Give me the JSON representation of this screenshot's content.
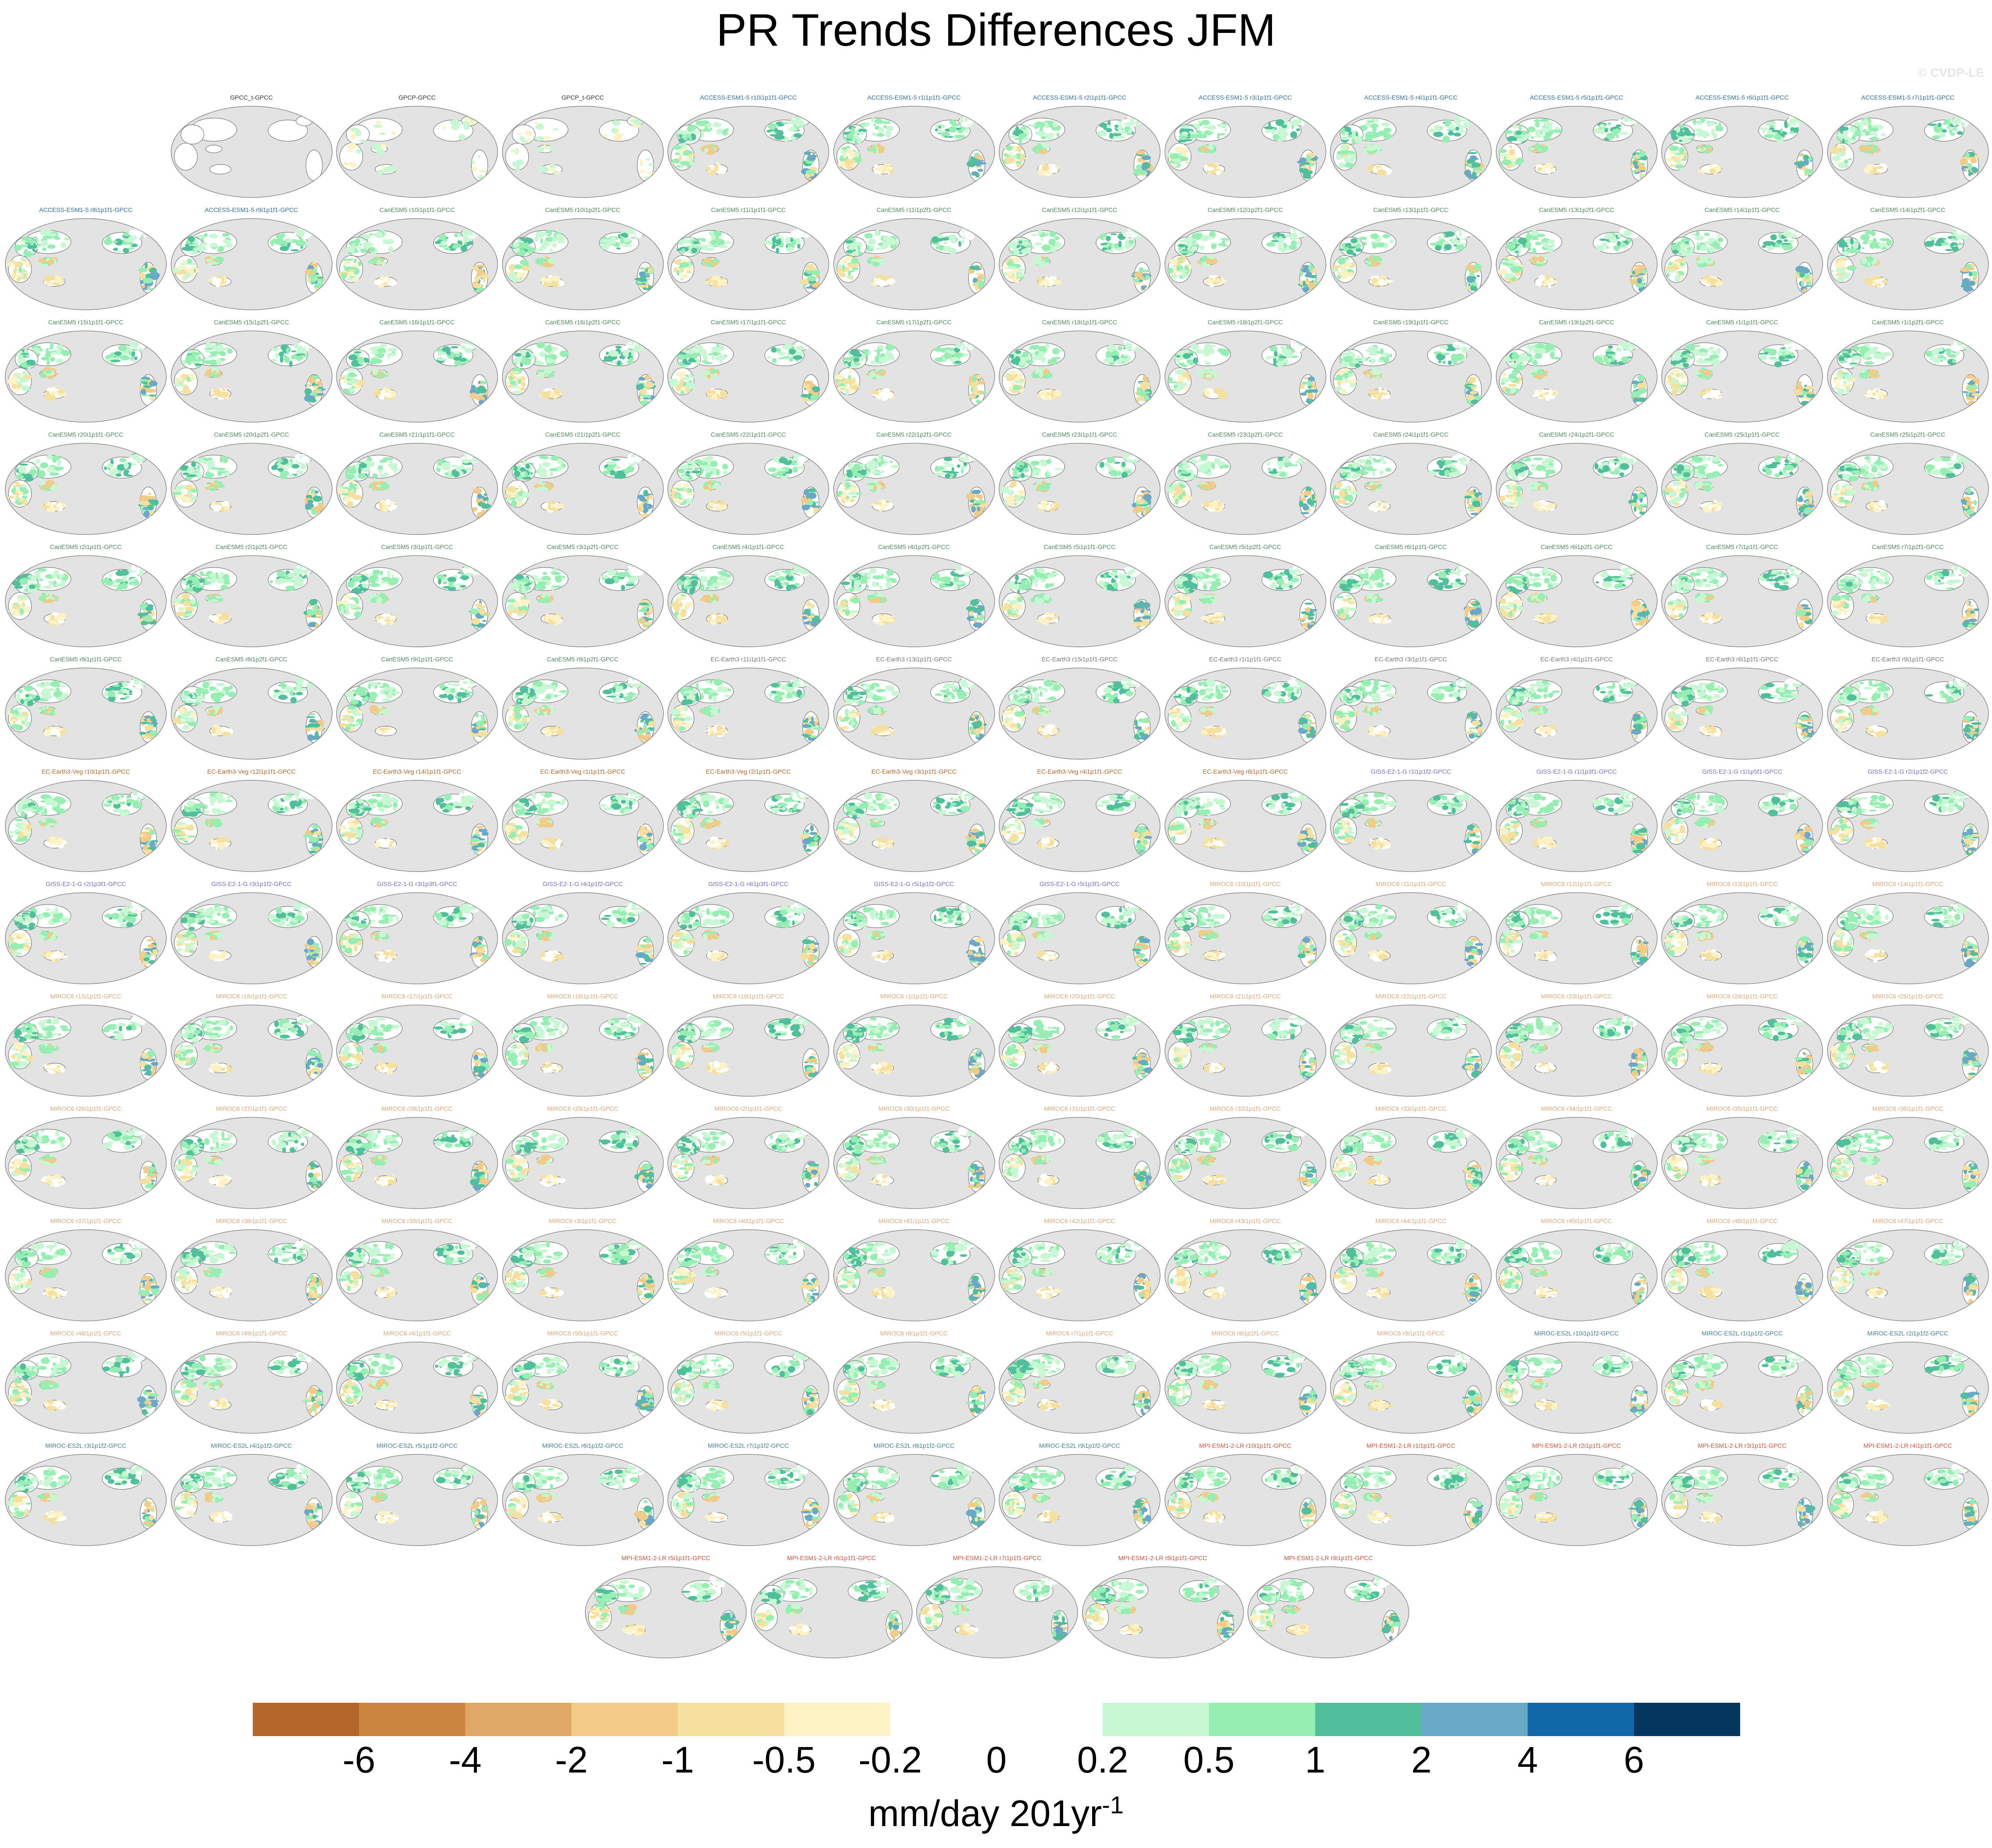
{
  "title": "PR Trends Differences JFM",
  "watermark": "© CVDP-LE",
  "colorbar": {
    "colors": [
      "#b5662a",
      "#cc853f",
      "#e0a866",
      "#f3cb88",
      "#f5e0a0",
      "#fdf2c3",
      "#ffffff",
      "#ffffff",
      "#c8f8d3",
      "#96eeb3",
      "#52bf9c",
      "#6aa8c8",
      "#1068a8",
      "#03375e"
    ],
    "ticks": [
      "-6",
      "-4",
      "-2",
      "-1",
      "-0.5",
      "-0.2",
      "0",
      "0.2",
      "0.5",
      "1",
      "2",
      "4",
      "6"
    ],
    "units_main": "mm/day 201yr",
    "units_sup": "-1"
  },
  "chart_data": {
    "type": "heatmap",
    "title": "PR Trends Differences JFM",
    "variable": "Precipitation trend difference (model minus GPCC), JFM",
    "units": "mm/day 201yr-1",
    "colorbar_levels": [
      -6,
      -4,
      -2,
      -1,
      -0.5,
      -0.2,
      0,
      0.2,
      0.5,
      1,
      2,
      4,
      6
    ],
    "group_colors": {
      "obs": "#333333",
      "ACCESS": "#2e6fa0",
      "CanESM5": "#4f8a5e",
      "EC-Earth3": "#777777",
      "EC-Earth3-Veg": "#b5682a",
      "GISS": "#7a6fc9",
      "MIROC6": "#e0a878",
      "MIROC-ES2L": "#3e7fa0",
      "MPI": "#d4533a"
    },
    "panels": [
      {
        "label": "GPCC_t-GPCC",
        "group": "obs"
      },
      {
        "label": "GPCP-GPCC",
        "group": "obs"
      },
      {
        "label": "GPCP_t-GPCC",
        "group": "obs"
      },
      {
        "label": "ACCESS-ESM1-5 r10i1p1f1-GPCC",
        "group": "ACCESS"
      },
      {
        "label": "ACCESS-ESM1-5 r1i1p1f1-GPCC",
        "group": "ACCESS"
      },
      {
        "label": "ACCESS-ESM1-5 r2i1p1f1-GPCC",
        "group": "ACCESS"
      },
      {
        "label": "ACCESS-ESM1-5 r3i1p1f1-GPCC",
        "group": "ACCESS"
      },
      {
        "label": "ACCESS-ESM1-5 r4i1p1f1-GPCC",
        "group": "ACCESS"
      },
      {
        "label": "ACCESS-ESM1-5 r5i1p1f1-GPCC",
        "group": "ACCESS"
      },
      {
        "label": "ACCESS-ESM1-5 r6i1p1f1-GPCC",
        "group": "ACCESS"
      },
      {
        "label": "ACCESS-ESM1-5 r7i1p1f1-GPCC",
        "group": "ACCESS"
      },
      {
        "label": "ACCESS-ESM1-5 r8i1p1f1-GPCC",
        "group": "ACCESS"
      },
      {
        "label": "ACCESS-ESM1-5 r9i1p1f1-GPCC",
        "group": "ACCESS"
      },
      {
        "label": "CanESM5 r10i1p1f1-GPCC",
        "group": "CanESM5"
      },
      {
        "label": "CanESM5 r10i1p2f1-GPCC",
        "group": "CanESM5"
      },
      {
        "label": "CanESM5 r11i1p1f1-GPCC",
        "group": "CanESM5"
      },
      {
        "label": "CanESM5 r11i1p2f1-GPCC",
        "group": "CanESM5"
      },
      {
        "label": "CanESM5 r12i1p1f1-GPCC",
        "group": "CanESM5"
      },
      {
        "label": "CanESM5 r12i1p2f1-GPCC",
        "group": "CanESM5"
      },
      {
        "label": "CanESM5 r13i1p1f1-GPCC",
        "group": "CanESM5"
      },
      {
        "label": "CanESM5 r13i1p2f1-GPCC",
        "group": "CanESM5"
      },
      {
        "label": "CanESM5 r14i1p1f1-GPCC",
        "group": "CanESM5"
      },
      {
        "label": "CanESM5 r14i1p2f1-GPCC",
        "group": "CanESM5"
      },
      {
        "label": "CanESM5 r15i1p1f1-GPCC",
        "group": "CanESM5"
      },
      {
        "label": "CanESM5 r15i1p2f1-GPCC",
        "group": "CanESM5"
      },
      {
        "label": "CanESM5 r16i1p1f1-GPCC",
        "group": "CanESM5"
      },
      {
        "label": "CanESM5 r16i1p2f1-GPCC",
        "group": "CanESM5"
      },
      {
        "label": "CanESM5 r17i1p1f1-GPCC",
        "group": "CanESM5"
      },
      {
        "label": "CanESM5 r17i1p2f1-GPCC",
        "group": "CanESM5"
      },
      {
        "label": "CanESM5 r18i1p1f1-GPCC",
        "group": "CanESM5"
      },
      {
        "label": "CanESM5 r18i1p2f1-GPCC",
        "group": "CanESM5"
      },
      {
        "label": "CanESM5 r19i1p1f1-GPCC",
        "group": "CanESM5"
      },
      {
        "label": "CanESM5 r19i1p2f1-GPCC",
        "group": "CanESM5"
      },
      {
        "label": "CanESM5 r1i1p1f1-GPCC",
        "group": "CanESM5"
      },
      {
        "label": "CanESM5 r1i1p2f1-GPCC",
        "group": "CanESM5"
      },
      {
        "label": "CanESM5 r20i1p1f1-GPCC",
        "group": "CanESM5"
      },
      {
        "label": "CanESM5 r20i1p2f1-GPCC",
        "group": "CanESM5"
      },
      {
        "label": "CanESM5 r21i1p1f1-GPCC",
        "group": "CanESM5"
      },
      {
        "label": "CanESM5 r21i1p2f1-GPCC",
        "group": "CanESM5"
      },
      {
        "label": "CanESM5 r22i1p1f1-GPCC",
        "group": "CanESM5"
      },
      {
        "label": "CanESM5 r22i1p2f1-GPCC",
        "group": "CanESM5"
      },
      {
        "label": "CanESM5 r23i1p1f1-GPCC",
        "group": "CanESM5"
      },
      {
        "label": "CanESM5 r23i1p2f1-GPCC",
        "group": "CanESM5"
      },
      {
        "label": "CanESM5 r24i1p1f1-GPCC",
        "group": "CanESM5"
      },
      {
        "label": "CanESM5 r24i1p2f1-GPCC",
        "group": "CanESM5"
      },
      {
        "label": "CanESM5 r25i1p1f1-GPCC",
        "group": "CanESM5"
      },
      {
        "label": "CanESM5 r25i1p2f1-GPCC",
        "group": "CanESM5"
      },
      {
        "label": "CanESM5 r2i1p1f1-GPCC",
        "group": "CanESM5"
      },
      {
        "label": "CanESM5 r2i1p2f1-GPCC",
        "group": "CanESM5"
      },
      {
        "label": "CanESM5 r3i1p1f1-GPCC",
        "group": "CanESM5"
      },
      {
        "label": "CanESM5 r3i1p2f1-GPCC",
        "group": "CanESM5"
      },
      {
        "label": "CanESM5 r4i1p1f1-GPCC",
        "group": "CanESM5"
      },
      {
        "label": "CanESM5 r4i1p2f1-GPCC",
        "group": "CanESM5"
      },
      {
        "label": "CanESM5 r5i1p1f1-GPCC",
        "group": "CanESM5"
      },
      {
        "label": "CanESM5 r5i1p2f1-GPCC",
        "group": "CanESM5"
      },
      {
        "label": "CanESM5 r6i1p1f1-GPCC",
        "group": "CanESM5"
      },
      {
        "label": "CanESM5 r6i1p2f1-GPCC",
        "group": "CanESM5"
      },
      {
        "label": "CanESM5 r7i1p1f1-GPCC",
        "group": "CanESM5"
      },
      {
        "label": "CanESM5 r7i1p2f1-GPCC",
        "group": "CanESM5"
      },
      {
        "label": "CanESM5 r8i1p1f1-GPCC",
        "group": "CanESM5"
      },
      {
        "label": "CanESM5 r8i1p2f1-GPCC",
        "group": "CanESM5"
      },
      {
        "label": "CanESM5 r9i1p1f1-GPCC",
        "group": "CanESM5"
      },
      {
        "label": "CanESM5 r9i1p2f1-GPCC",
        "group": "CanESM5"
      },
      {
        "label": "EC-Earth3 r11i1p1f1-GPCC",
        "group": "EC-Earth3"
      },
      {
        "label": "EC-Earth3 r13i1p1f1-GPCC",
        "group": "EC-Earth3"
      },
      {
        "label": "EC-Earth3 r15i1p1f1-GPCC",
        "group": "EC-Earth3"
      },
      {
        "label": "EC-Earth3 r1i1p1f1-GPCC",
        "group": "EC-Earth3"
      },
      {
        "label": "EC-Earth3 r3i1p1f1-GPCC",
        "group": "EC-Earth3"
      },
      {
        "label": "EC-Earth3 r4i1p1f1-GPCC",
        "group": "EC-Earth3"
      },
      {
        "label": "EC-Earth3 r6i1p1f1-GPCC",
        "group": "EC-Earth3"
      },
      {
        "label": "EC-Earth3 r9i1p1f1-GPCC",
        "group": "EC-Earth3"
      },
      {
        "label": "EC-Earth3-Veg r10i1p1f1-GPCC",
        "group": "EC-Earth3-Veg"
      },
      {
        "label": "EC-Earth3-Veg r12i1p1f1-GPCC",
        "group": "EC-Earth3-Veg"
      },
      {
        "label": "EC-Earth3-Veg r14i1p1f1-GPCC",
        "group": "EC-Earth3-Veg"
      },
      {
        "label": "EC-Earth3-Veg r1i1p1f1-GPCC",
        "group": "EC-Earth3-Veg"
      },
      {
        "label": "EC-Earth3-Veg r2i1p1f1-GPCC",
        "group": "EC-Earth3-Veg"
      },
      {
        "label": "EC-Earth3-Veg r3i1p1f1-GPCC",
        "group": "EC-Earth3-Veg"
      },
      {
        "label": "EC-Earth3-Veg r4i1p1f1-GPCC",
        "group": "EC-Earth3-Veg"
      },
      {
        "label": "EC-Earth3-Veg r6i1p1f1-GPCC",
        "group": "EC-Earth3-Veg"
      },
      {
        "label": "GISS-E2-1-G r1i1p1f2-GPCC",
        "group": "GISS"
      },
      {
        "label": "GISS-E2-1-G r1i1p3f1-GPCC",
        "group": "GISS"
      },
      {
        "label": "GISS-E2-1-G r1i1p5f1-GPCC",
        "group": "GISS"
      },
      {
        "label": "GISS-E2-1-G r2i1p1f2-GPCC",
        "group": "GISS"
      },
      {
        "label": "GISS-E2-1-G r2i1p3f1-GPCC",
        "group": "GISS"
      },
      {
        "label": "GISS-E2-1-G r3i1p1f2-GPCC",
        "group": "GISS"
      },
      {
        "label": "GISS-E2-1-G r3i1p3f1-GPCC",
        "group": "GISS"
      },
      {
        "label": "GISS-E2-1-G r4i1p1f2-GPCC",
        "group": "GISS"
      },
      {
        "label": "GISS-E2-1-G r4i1p3f1-GPCC",
        "group": "GISS"
      },
      {
        "label": "GISS-E2-1-G r5i1p1f2-GPCC",
        "group": "GISS"
      },
      {
        "label": "GISS-E2-1-G r5i1p3f1-GPCC",
        "group": "GISS"
      },
      {
        "label": "MIROC6 r10i1p1f1-GPCC",
        "group": "MIROC6"
      },
      {
        "label": "MIROC6 r11i1p1f1-GPCC",
        "group": "MIROC6"
      },
      {
        "label": "MIROC6 r12i1p1f1-GPCC",
        "group": "MIROC6"
      },
      {
        "label": "MIROC6 r13i1p1f1-GPCC",
        "group": "MIROC6"
      },
      {
        "label": "MIROC6 r14i1p1f1-GPCC",
        "group": "MIROC6"
      },
      {
        "label": "MIROC6 r15i1p1f1-GPCC",
        "group": "MIROC6"
      },
      {
        "label": "MIROC6 r16i1p1f1-GPCC",
        "group": "MIROC6"
      },
      {
        "label": "MIROC6 r17i1p1f1-GPCC",
        "group": "MIROC6"
      },
      {
        "label": "MIROC6 r18i1p1f1-GPCC",
        "group": "MIROC6"
      },
      {
        "label": "MIROC6 r19i1p1f1-GPCC",
        "group": "MIROC6"
      },
      {
        "label": "MIROC6 r1i1p1f1-GPCC",
        "group": "MIROC6"
      },
      {
        "label": "MIROC6 r20i1p1f1-GPCC",
        "group": "MIROC6"
      },
      {
        "label": "MIROC6 r21i1p1f1-GPCC",
        "group": "MIROC6"
      },
      {
        "label": "MIROC6 r22i1p1f1-GPCC",
        "group": "MIROC6"
      },
      {
        "label": "MIROC6 r23i1p1f1-GPCC",
        "group": "MIROC6"
      },
      {
        "label": "MIROC6 r24i1p1f1-GPCC",
        "group": "MIROC6"
      },
      {
        "label": "MIROC6 r25i1p1f1-GPCC",
        "group": "MIROC6"
      },
      {
        "label": "MIROC6 r26i1p1f1-GPCC",
        "group": "MIROC6"
      },
      {
        "label": "MIROC6 r27i1p1f1-GPCC",
        "group": "MIROC6"
      },
      {
        "label": "MIROC6 r28i1p1f1-GPCC",
        "group": "MIROC6"
      },
      {
        "label": "MIROC6 r29i1p1f1-GPCC",
        "group": "MIROC6"
      },
      {
        "label": "MIROC6 r2i1p1f1-GPCC",
        "group": "MIROC6"
      },
      {
        "label": "MIROC6 r30i1p1f1-GPCC",
        "group": "MIROC6"
      },
      {
        "label": "MIROC6 r31i1p1f1-GPCC",
        "group": "MIROC6"
      },
      {
        "label": "MIROC6 r32i1p1f1-GPCC",
        "group": "MIROC6"
      },
      {
        "label": "MIROC6 r33i1p1f1-GPCC",
        "group": "MIROC6"
      },
      {
        "label": "MIROC6 r34i1p1f1-GPCC",
        "group": "MIROC6"
      },
      {
        "label": "MIROC6 r35i1p1f1-GPCC",
        "group": "MIROC6"
      },
      {
        "label": "MIROC6 r36i1p1f1-GPCC",
        "group": "MIROC6"
      },
      {
        "label": "MIROC6 r37i1p1f1-GPCC",
        "group": "MIROC6"
      },
      {
        "label": "MIROC6 r38i1p1f1-GPCC",
        "group": "MIROC6"
      },
      {
        "label": "MIROC6 r39i1p1f1-GPCC",
        "group": "MIROC6"
      },
      {
        "label": "MIROC6 r3i1p1f1-GPCC",
        "group": "MIROC6"
      },
      {
        "label": "MIROC6 r40i1p1f1-GPCC",
        "group": "MIROC6"
      },
      {
        "label": "MIROC6 r41i1p1f1-GPCC",
        "group": "MIROC6"
      },
      {
        "label": "MIROC6 r42i1p1f1-GPCC",
        "group": "MIROC6"
      },
      {
        "label": "MIROC6 r43i1p1f1-GPCC",
        "group": "MIROC6"
      },
      {
        "label": "MIROC6 r44i1p1f1-GPCC",
        "group": "MIROC6"
      },
      {
        "label": "MIROC6 r45i1p1f1-GPCC",
        "group": "MIROC6"
      },
      {
        "label": "MIROC6 r46i1p1f1-GPCC",
        "group": "MIROC6"
      },
      {
        "label": "MIROC6 r47i1p1f1-GPCC",
        "group": "MIROC6"
      },
      {
        "label": "MIROC6 r48i1p1f1-GPCC",
        "group": "MIROC6"
      },
      {
        "label": "MIROC6 r49i1p1f1-GPCC",
        "group": "MIROC6"
      },
      {
        "label": "MIROC6 r4i1p1f1-GPCC",
        "group": "MIROC6"
      },
      {
        "label": "MIROC6 r50i1p1f1-GPCC",
        "group": "MIROC6"
      },
      {
        "label": "MIROC6 r5i1p1f1-GPCC",
        "group": "MIROC6"
      },
      {
        "label": "MIROC6 r6i1p1f1-GPCC",
        "group": "MIROC6"
      },
      {
        "label": "MIROC6 r7i1p1f1-GPCC",
        "group": "MIROC6"
      },
      {
        "label": "MIROC6 r8i1p1f1-GPCC",
        "group": "MIROC6"
      },
      {
        "label": "MIROC6 r9i1p1f1-GPCC",
        "group": "MIROC6"
      },
      {
        "label": "MIROC-ES2L r10i1p1f2-GPCC",
        "group": "MIROC-ES2L"
      },
      {
        "label": "MIROC-ES2L r1i1p1f2-GPCC",
        "group": "MIROC-ES2L"
      },
      {
        "label": "MIROC-ES2L r2i1p1f2-GPCC",
        "group": "MIROC-ES2L"
      },
      {
        "label": "MIROC-ES2L r3i1p1f2-GPCC",
        "group": "MIROC-ES2L"
      },
      {
        "label": "MIROC-ES2L r4i1p1f2-GPCC",
        "group": "MIROC-ES2L"
      },
      {
        "label": "MIROC-ES2L r5i1p1f2-GPCC",
        "group": "MIROC-ES2L"
      },
      {
        "label": "MIROC-ES2L r6i1p1f2-GPCC",
        "group": "MIROC-ES2L"
      },
      {
        "label": "MIROC-ES2L r7i1p1f2-GPCC",
        "group": "MIROC-ES2L"
      },
      {
        "label": "MIROC-ES2L r8i1p1f2-GPCC",
        "group": "MIROC-ES2L"
      },
      {
        "label": "MIROC-ES2L r9i1p1f2-GPCC",
        "group": "MIROC-ES2L"
      },
      {
        "label": "MPI-ESM1-2-LR r10i1p1f1-GPCC",
        "group": "MPI"
      },
      {
        "label": "MPI-ESM1-2-LR r1i1p1f1-GPCC",
        "group": "MPI"
      },
      {
        "label": "MPI-ESM1-2-LR r2i1p1f1-GPCC",
        "group": "MPI"
      },
      {
        "label": "MPI-ESM1-2-LR r3i1p1f1-GPCC",
        "group": "MPI"
      },
      {
        "label": "MPI-ESM1-2-LR r4i1p1f1-GPCC",
        "group": "MPI"
      },
      {
        "label": "MPI-ESM1-2-LR r5i1p1f1-GPCC",
        "group": "MPI"
      },
      {
        "label": "MPI-ESM1-2-LR r6i1p1f1-GPCC",
        "group": "MPI"
      },
      {
        "label": "MPI-ESM1-2-LR r7i1p1f1-GPCC",
        "group": "MPI"
      },
      {
        "label": "MPI-ESM1-2-LR r8i1p1f1-GPCC",
        "group": "MPI"
      },
      {
        "label": "MPI-ESM1-2-LR r9i1p1f1-GPCC",
        "group": "MPI"
      }
    ]
  }
}
